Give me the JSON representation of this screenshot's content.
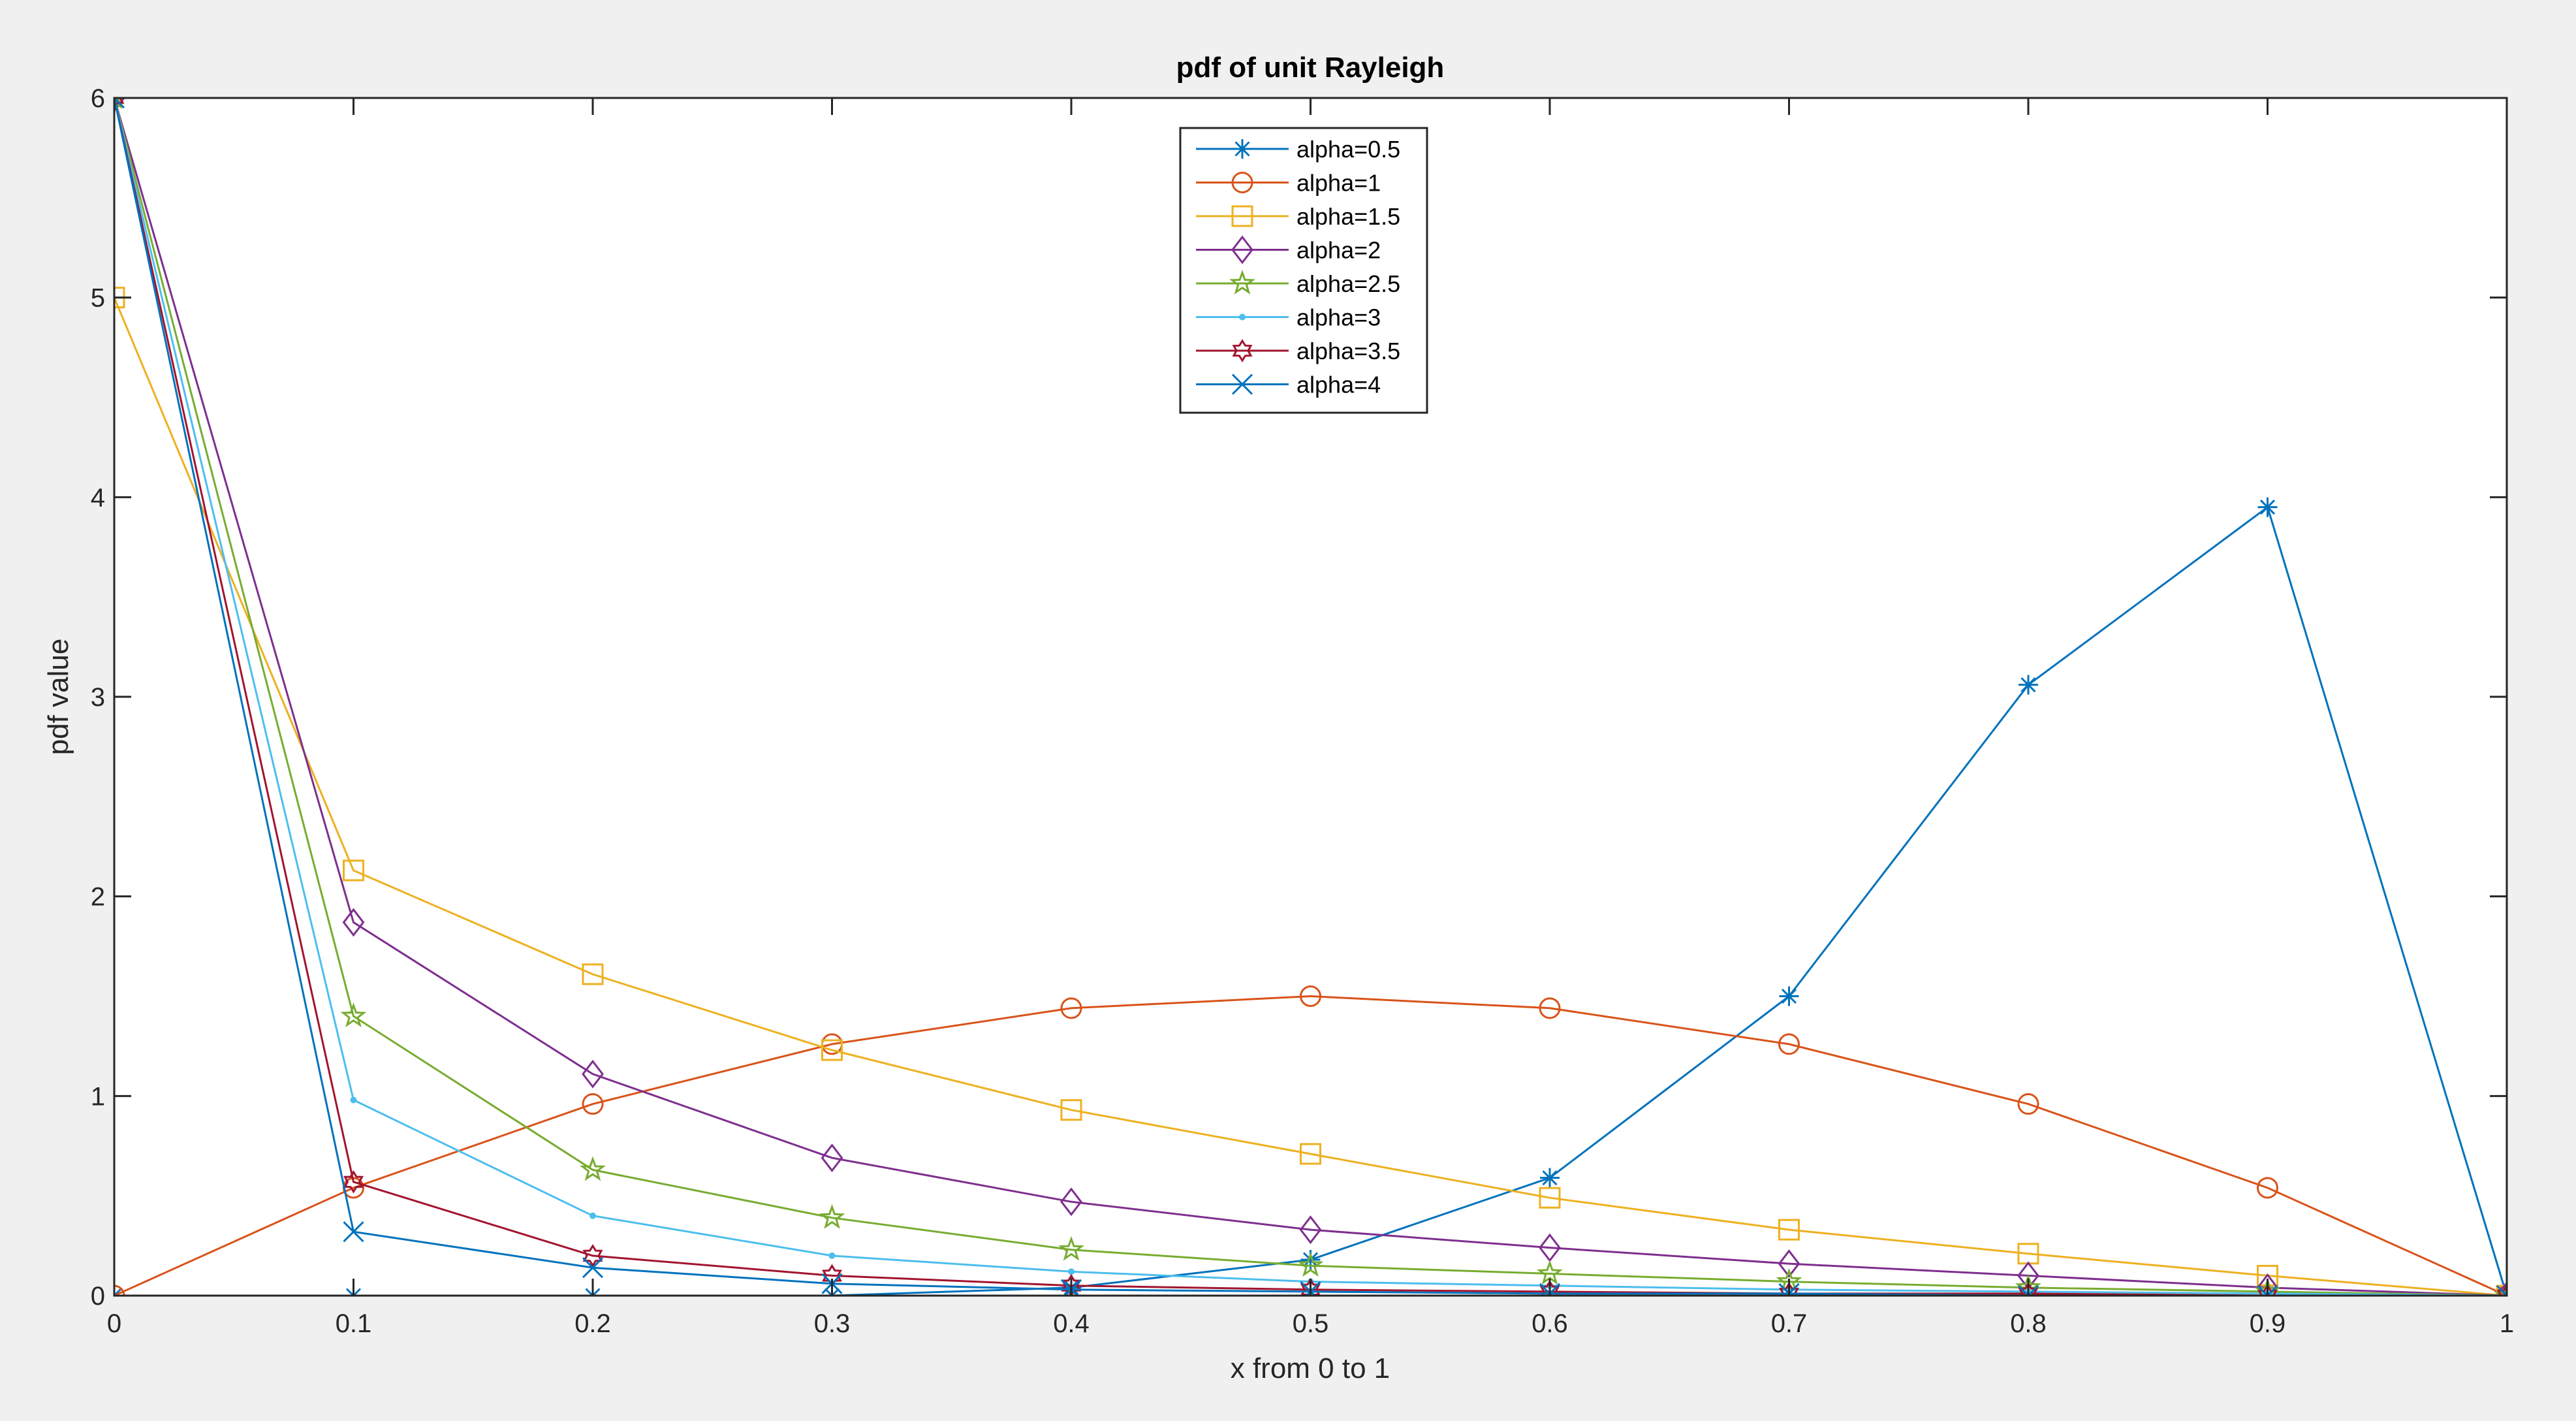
{
  "chart_data": {
    "type": "line",
    "title": "pdf of unit Rayleigh",
    "xlabel": "x from 0 to 1",
    "ylabel": "pdf value",
    "xlim": [
      0,
      1
    ],
    "ylim": [
      0,
      6
    ],
    "xticks": [
      "0",
      "0.1",
      "0.2",
      "0.3",
      "0.4",
      "0.5",
      "0.6",
      "0.7",
      "0.8",
      "0.9",
      "1"
    ],
    "yticks": [
      "0",
      "1",
      "2",
      "3",
      "4",
      "5",
      "6"
    ],
    "grid": false,
    "legend": {
      "placement": "top-center",
      "entries": [
        "alpha=0.5",
        "alpha=1",
        "alpha=1.5",
        "alpha=2",
        "alpha=2.5",
        "alpha=3",
        "alpha=3.5",
        "alpha=4"
      ]
    },
    "series": [
      {
        "name": "alpha=0.5",
        "alpha": 0.5,
        "color": "#0072BD",
        "marker": "asterisk",
        "x": [
          0,
          0.1,
          0.2,
          0.3,
          0.4,
          0.5,
          0.6,
          0.7,
          0.8,
          0.9,
          1
        ],
        "y": [
          0,
          0,
          0,
          0,
          0.04,
          0.18,
          0.59,
          1.5,
          3.06,
          3.95,
          0
        ]
      },
      {
        "name": "alpha=1",
        "alpha": 1,
        "color": "#D95319",
        "marker": "circle",
        "x": [
          0,
          0.1,
          0.2,
          0.3,
          0.4,
          0.5,
          0.6,
          0.7,
          0.8,
          0.9,
          1
        ],
        "y": [
          0,
          0.54,
          0.96,
          1.26,
          1.44,
          1.5,
          1.44,
          1.26,
          0.96,
          0.54,
          0
        ]
      },
      {
        "name": "alpha=1.5",
        "alpha": 1.5,
        "color": "#EDB120",
        "marker": "square",
        "x": [
          0,
          0.1,
          0.2,
          0.3,
          0.4,
          0.5,
          0.6,
          0.7,
          0.8,
          0.9,
          1
        ],
        "y": [
          5.0,
          2.13,
          1.61,
          1.23,
          0.93,
          0.71,
          0.49,
          0.33,
          0.21,
          0.1,
          0
        ]
      },
      {
        "name": "alpha=2",
        "alpha": 2,
        "color": "#7E2F8E",
        "marker": "diamond",
        "x": [
          0,
          0.1,
          0.2,
          0.3,
          0.4,
          0.5,
          0.6,
          0.7,
          0.8,
          0.9,
          1
        ],
        "y": [
          6,
          1.87,
          1.11,
          0.69,
          0.47,
          0.33,
          0.24,
          0.16,
          0.1,
          0.04,
          0
        ]
      },
      {
        "name": "alpha=2.5",
        "alpha": 2.5,
        "color": "#77AC30",
        "marker": "pentagram",
        "x": [
          0,
          0.1,
          0.2,
          0.3,
          0.4,
          0.5,
          0.6,
          0.7,
          0.8,
          0.9,
          1
        ],
        "y": [
          6,
          1.4,
          0.63,
          0.39,
          0.23,
          0.15,
          0.11,
          0.07,
          0.04,
          0.02,
          0
        ]
      },
      {
        "name": "alpha=3",
        "alpha": 3,
        "color": "#4DBEEE",
        "marker": "point",
        "x": [
          0,
          0.1,
          0.2,
          0.3,
          0.4,
          0.5,
          0.6,
          0.7,
          0.8,
          0.9,
          1
        ],
        "y": [
          6,
          0.98,
          0.4,
          0.2,
          0.12,
          0.07,
          0.05,
          0.03,
          0.02,
          0.01,
          0
        ]
      },
      {
        "name": "alpha=3.5",
        "alpha": 3.5,
        "color": "#A2142F",
        "marker": "hexagram",
        "x": [
          0,
          0.1,
          0.2,
          0.3,
          0.4,
          0.5,
          0.6,
          0.7,
          0.8,
          0.9,
          1
        ],
        "y": [
          6,
          0.57,
          0.2,
          0.1,
          0.05,
          0.03,
          0.02,
          0.01,
          0.01,
          0,
          0
        ]
      },
      {
        "name": "alpha=4",
        "alpha": 4,
        "color": "#0072BD",
        "marker": "cross",
        "x": [
          0,
          0.1,
          0.2,
          0.3,
          0.4,
          0.5,
          0.6,
          0.7,
          0.8,
          0.9,
          1
        ],
        "y": [
          6,
          0.32,
          0.14,
          0.06,
          0.03,
          0.02,
          0.01,
          0.01,
          0,
          0,
          0
        ]
      }
    ]
  }
}
